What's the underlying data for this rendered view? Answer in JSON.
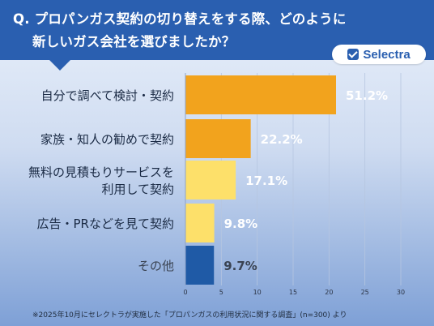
{
  "header": {
    "title_line1": "Q. プロパンガス契約の切り替えをする際、どのように",
    "title_line2": "新しいガス会社を選びましたか？"
  },
  "logo": {
    "text": "Selectra",
    "icon": "check-box-icon",
    "color": "#2a5fb0"
  },
  "footnote": "※2025年10月にセレクトラが実施した「プロパンガスの利用状況に関する調査」(n=300) より",
  "chart_data": {
    "type": "bar",
    "orientation": "horizontal",
    "categories": [
      [
        "自分で調べて検討・契約"
      ],
      [
        "家族・知人の勧めで契約"
      ],
      [
        "無料の見積もりサービスを",
        "利用して契約"
      ],
      [
        "広告・PRなどを見て契約"
      ],
      [
        "その他"
      ]
    ],
    "values": [
      51.2,
      22.2,
      17.1,
      9.8,
      9.7
    ],
    "value_labels": [
      "51.2%",
      "22.2%",
      "17.1%",
      "9.8%",
      "9.7%"
    ],
    "colors": [
      "#f2a31d",
      "#f2a31d",
      "#fde06a",
      "#fde06a",
      "#1f5aa6"
    ],
    "label_colors": [
      "#ffffff",
      "#ffffff",
      "#ffffff",
      "#ffffff",
      "#3a4352"
    ],
    "xticks": [
      0,
      5,
      10,
      15,
      20,
      25,
      30
    ],
    "xlim": [
      0,
      30
    ],
    "grid": true
  }
}
